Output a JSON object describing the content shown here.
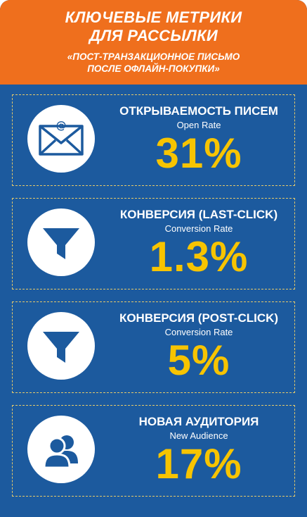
{
  "header": {
    "title_line1": "КЛЮЧЕВЫЕ МЕТРИКИ",
    "title_line2": "ДЛЯ РАССЫЛКИ",
    "subtitle_line1": "«ПОСТ-ТРАНЗАКЦИОННОЕ ПИСЬМО",
    "subtitle_line2": "ПОСЛЕ ОФЛАЙН-ПОКУПКИ»"
  },
  "metrics": [
    {
      "title": "ОТКРЫВАЕМОСТЬ ПИСЕМ",
      "subtitle": "Open Rate",
      "value": "31%",
      "icon": "envelope-icon"
    },
    {
      "title": "КОНВЕРСИЯ (LAST-CLICK)",
      "subtitle": "Conversion Rate",
      "value": "1.3%",
      "icon": "funnel-icon"
    },
    {
      "title": "КОНВЕРСИЯ (POST-CLICK)",
      "subtitle": "Conversion Rate",
      "value": "5%",
      "icon": "funnel-icon"
    },
    {
      "title": "НОВАЯ АУДИТОРИЯ",
      "subtitle": "New Audience",
      "value": "17%",
      "icon": "users-icon"
    }
  ],
  "colors": {
    "background": "#1c5a9e",
    "header": "#ef6f1d",
    "value": "#f7c400",
    "border": "#e5c96a",
    "icon": "#1c5a9e"
  }
}
